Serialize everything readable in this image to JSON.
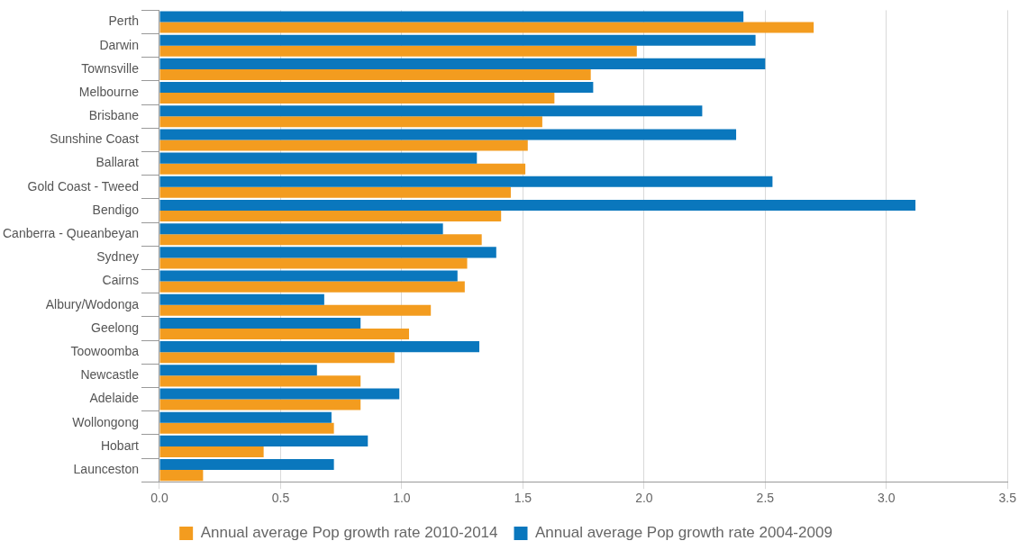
{
  "chart_data": {
    "type": "bar",
    "orientation": "horizontal",
    "categories": [
      "Perth",
      "Darwin",
      "Townsville",
      "Melbourne",
      "Brisbane",
      "Sunshine Coast",
      "Ballarat",
      "Gold Coast - Tweed",
      "Bendigo",
      "Canberra - Queanbeyan",
      "Sydney",
      "Cairns",
      "Albury/Wodonga",
      "Geelong",
      "Toowoomba",
      "Newcastle",
      "Adelaide",
      "Wollongong",
      "Hobart",
      "Launceston"
    ],
    "series": [
      {
        "name": "Annual average Pop growth rate 2004-2009",
        "color": "#0a77bd",
        "values": [
          2.41,
          2.46,
          2.5,
          1.79,
          2.24,
          2.38,
          1.31,
          2.53,
          3.12,
          1.17,
          1.39,
          1.23,
          0.68,
          0.83,
          1.32,
          0.65,
          0.99,
          0.71,
          0.86,
          0.72
        ]
      },
      {
        "name": "Annual average Pop growth rate 2010-2014",
        "color": "#f39c1f",
        "values": [
          2.7,
          1.97,
          1.78,
          1.63,
          1.58,
          1.52,
          1.51,
          1.45,
          1.41,
          1.33,
          1.27,
          1.26,
          1.12,
          1.03,
          0.97,
          0.83,
          0.83,
          0.72,
          0.43,
          0.18
        ]
      }
    ],
    "xlim": [
      0,
      3.5
    ],
    "xticks": [
      {
        "value": 0,
        "label": "0.0"
      },
      {
        "value": 0.5,
        "label": "0.5"
      },
      {
        "value": 1,
        "label": "1.0"
      },
      {
        "value": 1.5,
        "label": "1.5"
      },
      {
        "value": 2,
        "label": "2.0"
      },
      {
        "value": 2.5,
        "label": "2.5"
      },
      {
        "value": 3,
        "label": "3.0"
      },
      {
        "value": 3.5,
        "label": "3.5"
      }
    ],
    "grid": "x",
    "legend": "bottom"
  }
}
